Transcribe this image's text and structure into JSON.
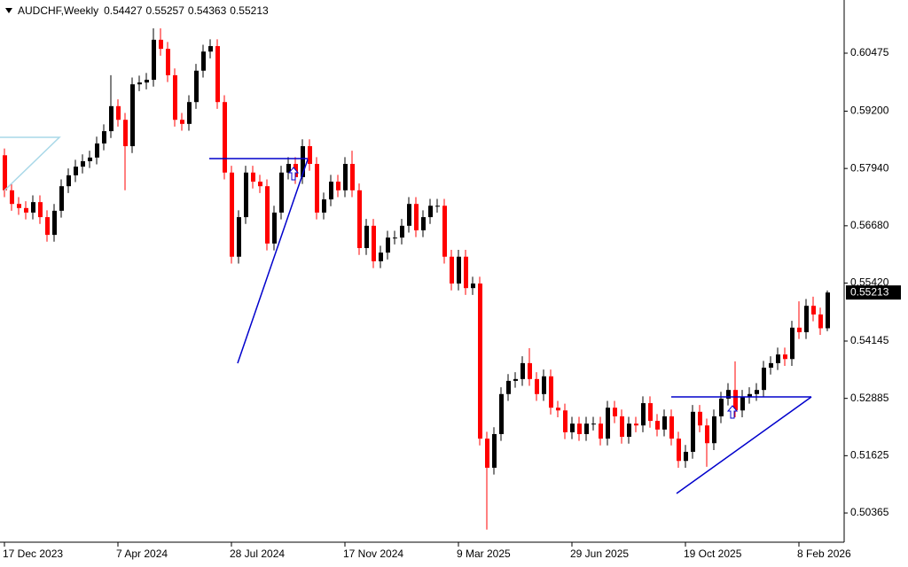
{
  "chart_data": {
    "type": "candlestick",
    "title": "AUDCHF,Weekly",
    "up_color": "#000000",
    "down_color": "#ff0000",
    "categories": [
      "17 Dec 2023",
      null,
      null,
      null,
      null,
      null,
      null,
      null,
      null,
      null,
      null,
      null,
      null,
      null,
      null,
      null,
      "7 Apr 2024",
      null,
      null,
      null,
      null,
      null,
      null,
      null,
      null,
      null,
      null,
      null,
      null,
      null,
      null,
      null,
      "28 Jul 2024",
      null,
      null,
      null,
      null,
      null,
      null,
      null,
      null,
      null,
      null,
      null,
      null,
      null,
      null,
      null,
      "17 Nov 2024",
      null,
      null,
      null,
      null,
      null,
      null,
      null,
      null,
      null,
      null,
      null,
      null,
      null,
      null,
      null,
      "9 Mar 2025",
      null,
      null,
      null,
      null,
      null,
      null,
      null,
      null,
      null,
      null,
      null,
      null,
      null,
      null,
      null,
      "29 Jun 2025",
      null,
      null,
      null,
      null,
      null,
      null,
      null,
      null,
      null,
      null,
      null,
      null,
      null,
      null,
      null,
      "19 Oct 2025",
      null,
      null,
      null,
      null,
      null,
      null,
      null,
      null,
      null,
      null,
      null,
      null,
      null,
      null,
      null,
      "8 Feb 2026",
      null,
      null,
      null,
      null
    ],
    "open": [
      0.5823,
      0.5746,
      0.5716,
      0.5707,
      0.5697,
      0.572,
      0.5687,
      0.5648,
      0.5701,
      0.5755,
      0.5779,
      0.5798,
      0.581,
      0.5818,
      0.5849,
      0.5876,
      0.5931,
      0.5901,
      0.5843,
      0.5979,
      0.5983,
      0.5989,
      0.6077,
      0.6057,
      0.5999,
      0.5901,
      0.5892,
      0.594,
      0.6009,
      0.6051,
      0.6063,
      0.594,
      0.5785,
      0.56,
      0.5687,
      0.5785,
      0.5765,
      0.5755,
      0.5629,
      0.5697,
      0.5785,
      0.5804,
      0.5775,
      0.5843,
      0.5804,
      0.5697,
      0.5726,
      0.5765,
      0.5746,
      0.5804,
      0.5746,
      0.5619,
      0.5668,
      0.559,
      0.5609,
      0.5642,
      0.5642,
      0.5668,
      0.5716,
      0.5658,
      0.5687,
      0.5712,
      0.5712,
      0.56,
      0.5541,
      0.56,
      0.5531,
      0.5541,
      0.52,
      0.5136,
      0.521,
      0.5298,
      0.5327,
      0.5331,
      0.5366,
      0.5331,
      0.5298,
      0.5337,
      0.5268,
      0.5262,
      0.5214,
      0.5233,
      0.521,
      0.5233,
      0.5233,
      0.52,
      0.5268,
      0.5249,
      0.5204,
      0.5233,
      0.5229,
      0.5278,
      0.5239,
      0.522,
      0.5249,
      0.52,
      0.5151,
      0.5171,
      0.5259,
      0.5229,
      0.519,
      0.5249,
      0.5288,
      0.5307,
      0.5262,
      0.5292,
      0.5298,
      0.5307,
      0.5356,
      0.5366,
      0.5385,
      0.5375,
      0.5444,
      0.5434,
      0.5492,
      0.5473,
      0.54427
    ],
    "high": [
      0.5838,
      0.5761,
      0.5731,
      0.5722,
      0.5735,
      0.5735,
      0.5702,
      0.5716,
      0.577,
      0.5794,
      0.5813,
      0.5825,
      0.5833,
      0.5864,
      0.5891,
      0.5999,
      0.5946,
      0.5916,
      0.5994,
      0.5998,
      0.6004,
      0.6102,
      0.6102,
      0.6072,
      0.6014,
      0.5916,
      0.5955,
      0.6024,
      0.6066,
      0.6078,
      0.6078,
      0.5955,
      0.58,
      0.5702,
      0.58,
      0.58,
      0.578,
      0.577,
      0.5712,
      0.58,
      0.5819,
      0.5819,
      0.5858,
      0.5858,
      0.5819,
      0.5741,
      0.578,
      0.578,
      0.5819,
      0.5833,
      0.5761,
      0.5683,
      0.5683,
      0.5624,
      0.5657,
      0.5657,
      0.5683,
      0.5731,
      0.5731,
      0.5702,
      0.5727,
      0.5727,
      0.5727,
      0.5615,
      0.5615,
      0.5615,
      0.5556,
      0.5556,
      0.5215,
      0.5225,
      0.5313,
      0.5342,
      0.5346,
      0.5381,
      0.5399,
      0.5346,
      0.5352,
      0.5352,
      0.5283,
      0.5277,
      0.5248,
      0.5248,
      0.5248,
      0.5248,
      0.5248,
      0.5283,
      0.5283,
      0.5264,
      0.5248,
      0.5248,
      0.5293,
      0.5293,
      0.5254,
      0.5264,
      0.5264,
      0.5215,
      0.5186,
      0.5274,
      0.5274,
      0.5244,
      0.5264,
      0.5303,
      0.5322,
      0.537,
      0.5307,
      0.5313,
      0.5322,
      0.5371,
      0.5381,
      0.54,
      0.54,
      0.5459,
      0.5502,
      0.5507,
      0.5512,
      0.5488,
      0.55257
    ],
    "low": [
      0.5731,
      0.5701,
      0.5692,
      0.5682,
      0.5682,
      0.5672,
      0.5633,
      0.5633,
      0.5686,
      0.574,
      0.5764,
      0.5783,
      0.5795,
      0.5803,
      0.5834,
      0.5861,
      0.5886,
      0.5746,
      0.5828,
      0.5964,
      0.5968,
      0.5974,
      0.6042,
      0.5984,
      0.5886,
      0.5877,
      0.5877,
      0.5925,
      0.5994,
      0.6036,
      0.5925,
      0.577,
      0.5585,
      0.5585,
      0.5672,
      0.575,
      0.574,
      0.5614,
      0.5614,
      0.5682,
      0.577,
      0.576,
      0.576,
      0.5789,
      0.5682,
      0.5682,
      0.5711,
      0.5731,
      0.5731,
      0.5731,
      0.5604,
      0.5604,
      0.5575,
      0.5575,
      0.5594,
      0.5627,
      0.5627,
      0.5653,
      0.5643,
      0.5643,
      0.5672,
      0.5697,
      0.5585,
      0.5526,
      0.5526,
      0.5516,
      0.5516,
      0.5185,
      0.5,
      0.5121,
      0.5195,
      0.5283,
      0.5312,
      0.5316,
      0.5316,
      0.5283,
      0.5283,
      0.5253,
      0.5247,
      0.5199,
      0.5199,
      0.5195,
      0.5195,
      0.5218,
      0.5185,
      0.5185,
      0.5234,
      0.5189,
      0.5189,
      0.5214,
      0.5214,
      0.5224,
      0.5205,
      0.5205,
      0.5185,
      0.5136,
      0.5136,
      0.5156,
      0.5214,
      0.5138,
      0.5175,
      0.5234,
      0.5273,
      0.5247,
      0.5247,
      0.5277,
      0.5283,
      0.5292,
      0.5341,
      0.5351,
      0.536,
      0.536,
      0.5419,
      0.5419,
      0.5458,
      0.5428,
      0.54363
    ],
    "close": [
      0.5746,
      0.5716,
      0.5707,
      0.5697,
      0.572,
      0.5687,
      0.5648,
      0.5701,
      0.5755,
      0.5779,
      0.5798,
      0.581,
      0.5818,
      0.5849,
      0.5876,
      0.5931,
      0.5901,
      0.5843,
      0.5979,
      0.5983,
      0.5989,
      0.6077,
      0.6057,
      0.5999,
      0.5901,
      0.5892,
      0.594,
      0.6009,
      0.6051,
      0.6063,
      0.594,
      0.5785,
      0.56,
      0.5687,
      0.5785,
      0.5765,
      0.5755,
      0.5629,
      0.5697,
      0.5785,
      0.5804,
      0.5775,
      0.5843,
      0.5804,
      0.5697,
      0.5726,
      0.5765,
      0.5746,
      0.5804,
      0.5746,
      0.5619,
      0.5668,
      0.559,
      0.5609,
      0.5642,
      0.5642,
      0.5668,
      0.5716,
      0.5658,
      0.5687,
      0.5712,
      0.5712,
      0.56,
      0.5541,
      0.56,
      0.5531,
      0.5541,
      0.52,
      0.5136,
      0.521,
      0.5298,
      0.5327,
      0.5331,
      0.5366,
      0.5331,
      0.5298,
      0.5337,
      0.5268,
      0.5262,
      0.5214,
      0.5233,
      0.521,
      0.5233,
      0.5233,
      0.52,
      0.5268,
      0.5249,
      0.5204,
      0.5233,
      0.5229,
      0.5278,
      0.5239,
      0.522,
      0.5249,
      0.52,
      0.5151,
      0.5171,
      0.5259,
      0.5229,
      0.519,
      0.5249,
      0.5288,
      0.5307,
      0.5262,
      0.5292,
      0.5298,
      0.5307,
      0.5356,
      0.5366,
      0.5385,
      0.5375,
      0.5444,
      0.5434,
      0.5492,
      0.5473,
      0.54427,
      0.55213
    ],
    "ylim": [
      0.49723,
      0.61644
    ],
    "yticks": [
      0.60475,
      {
        "value": 0.592,
        "label": "0.59200"
      },
      {
        "value": 0.5794,
        "label": "0.57940"
      },
      {
        "value": 0.5668,
        "label": "0.56680"
      },
      {
        "value": 0.5542,
        "label": "0.55420"
      },
      0.54145,
      0.52885,
      0.51625,
      0.50365
    ]
  }
}
